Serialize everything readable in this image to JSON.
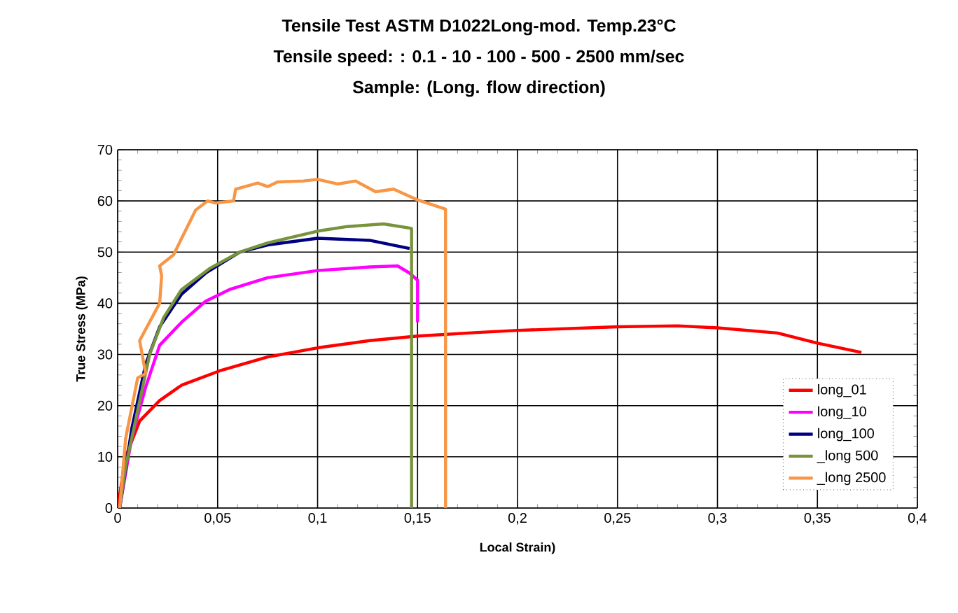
{
  "chart_data": {
    "type": "line",
    "title": "Tensile Test ASTM D1022Long-mod.  Temp.23°C",
    "subtitle": "Tensile speed:  :  0.1 - 10 - 100 - 500 - 2500  mm/sec",
    "annotations": [
      "Sample: (Long. flow direction)"
    ],
    "xlabel": "Local Strain)",
    "ylabel": "True Stress (MPa)",
    "xlim": [
      0,
      0.4
    ],
    "ylim": [
      0,
      70
    ],
    "xticks": [
      0,
      {
        "value": 0.05,
        "label": "0,05"
      },
      {
        "value": 0.1,
        "label": "0,1"
      },
      {
        "value": 0.15,
        "label": "0,15"
      },
      {
        "value": 0.2,
        "label": "0,2"
      },
      {
        "value": 0.25,
        "label": "0,25"
      },
      {
        "value": 0.3,
        "label": "0,3"
      },
      {
        "value": 0.35,
        "label": "0,35"
      },
      {
        "value": 0.4,
        "label": "0,4"
      }
    ],
    "yticks": [
      0,
      10,
      20,
      30,
      40,
      50,
      60,
      70
    ],
    "grid": true,
    "legend": "bottom right",
    "marker": "none",
    "line_style": "solid",
    "series": [
      {
        "name": "long_01",
        "color": "#ff0000",
        "x": [
          0,
          0.004,
          0.011,
          0.021,
          0.032,
          0.051,
          0.075,
          0.1,
          0.126,
          0.15,
          0.18,
          0.2,
          0.25,
          0.28,
          0.3,
          0.33,
          0.35,
          0.372
        ],
        "values": [
          0,
          10,
          17,
          21,
          24,
          26.8,
          29.5,
          31.3,
          32.7,
          33.6,
          34.3,
          34.7,
          35.4,
          35.6,
          35.2,
          34.2,
          32.2,
          30.4
        ]
      },
      {
        "name": "long_10",
        "color": "#ff00ff",
        "x": [
          0.001,
          0.007,
          0.014,
          0.021,
          0.032,
          0.044,
          0.056,
          0.075,
          0.1,
          0.126,
          0.14,
          0.146,
          0.15,
          0.15
        ],
        "values": [
          0,
          13.6,
          23.6,
          31.8,
          36.3,
          40.4,
          42.7,
          45,
          46.4,
          47.1,
          47.3,
          45.9,
          44.5,
          36.3
        ]
      },
      {
        "name": "long_100",
        "color": "#000080",
        "x": [
          0.001,
          0.007,
          0.014,
          0.021,
          0.032,
          0.044,
          0.061,
          0.075,
          0.1,
          0.126,
          0.146
        ],
        "values": [
          0,
          15.4,
          28.1,
          35.4,
          41.8,
          45.9,
          50,
          51.4,
          52.7,
          52.3,
          50.7
        ]
      },
      {
        "name": "_long 500",
        "color": "#77933c",
        "x": [
          0.001,
          0.004,
          0.011,
          0.016,
          0.023,
          0.032,
          0.046,
          0.061,
          0.075,
          0.1,
          0.115,
          0.133,
          0.146,
          0.147,
          0.147
        ],
        "values": [
          0,
          8.1,
          20.9,
          30,
          37.2,
          42.7,
          46.8,
          50,
          51.8,
          54.1,
          55,
          55.5,
          54.7,
          54.6,
          0
        ]
      },
      {
        "name": "_long 2500",
        "color": "#f79646",
        "x": [
          0.001,
          0.004,
          0.01,
          0.014,
          0.011,
          0.021,
          0.022,
          0.021,
          0.028,
          0.032,
          0.039,
          0.045,
          0.049,
          0.058,
          0.059,
          0.07,
          0.075,
          0.08,
          0.093,
          0.1,
          0.11,
          0.119,
          0.129,
          0.138,
          0.15,
          0.164,
          0.164
        ],
        "values": [
          0,
          13.6,
          25.4,
          26.3,
          32.7,
          40,
          45.4,
          47.3,
          49.5,
          52.7,
          58.2,
          60,
          59.6,
          60,
          62.3,
          63.5,
          62.8,
          63.7,
          63.9,
          64.2,
          63.3,
          63.9,
          61.8,
          62.3,
          60.2,
          58.4,
          0
        ]
      }
    ]
  }
}
